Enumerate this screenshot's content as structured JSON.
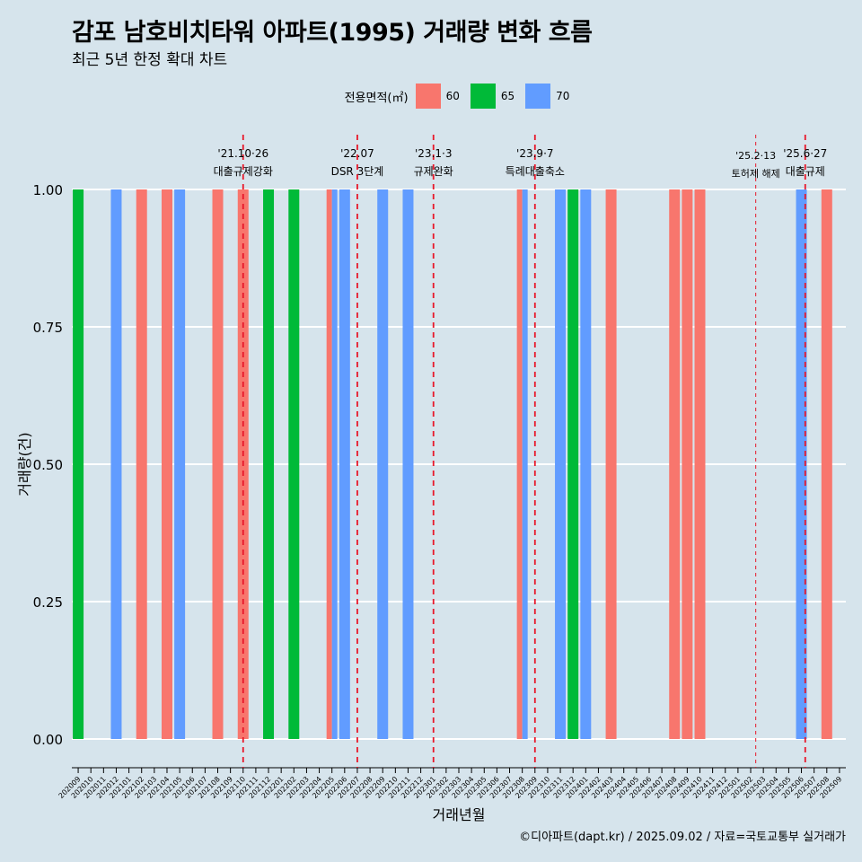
{
  "title": "감포 남호비치타워 아파트(1995) 거래량 변화 흐름",
  "subtitle": "최근 5년 한정 확대 차트",
  "caption": "©디아파트(dapt.kr) / 2025.09.02 / 자료=국토교통부 실거래가",
  "legend": {
    "title": "전용면적(㎡)",
    "items": [
      {
        "label": "60",
        "color": "#F8766D"
      },
      {
        "label": "65",
        "color": "#00BA38"
      },
      {
        "label": "70",
        "color": "#619CFF"
      }
    ]
  },
  "chart_data": {
    "type": "bar",
    "xlabel": "거래년월",
    "ylabel": "거래량(건)",
    "ylim": [
      0,
      1
    ],
    "yticks": [
      "0.00",
      "0.25",
      "0.50",
      "0.75",
      "1.00"
    ],
    "grid": true,
    "legend_position": "top",
    "categories": [
      "202009",
      "202010",
      "202011",
      "202012",
      "202101",
      "202102",
      "202103",
      "202104",
      "202105",
      "202106",
      "202107",
      "202108",
      "202109",
      "202110",
      "202111",
      "202112",
      "202201",
      "202202",
      "202203",
      "202204",
      "202205",
      "202206",
      "202207",
      "202208",
      "202209",
      "202210",
      "202211",
      "202212",
      "202301",
      "202302",
      "202303",
      "202304",
      "202305",
      "202306",
      "202307",
      "202308",
      "202309",
      "202310",
      "202311",
      "202312",
      "202401",
      "202402",
      "202403",
      "202404",
      "202405",
      "202406",
      "202407",
      "202408",
      "202409",
      "202410",
      "202411",
      "202412",
      "202501",
      "202502",
      "202503",
      "202504",
      "202505",
      "202506",
      "202507",
      "202508",
      "202509"
    ],
    "series": [
      {
        "name": "60",
        "color": "#F8766D",
        "values": [
          0,
          0,
          0,
          0,
          0,
          1,
          0,
          1,
          0,
          0,
          0,
          1,
          0,
          1,
          0,
          0,
          0,
          0,
          0,
          0,
          1,
          0,
          0,
          0,
          0,
          0,
          0,
          0,
          0,
          0,
          0,
          0,
          0,
          0,
          0,
          1,
          0,
          0,
          0,
          0,
          0,
          0,
          1,
          0,
          0,
          0,
          0,
          1,
          1,
          1,
          0,
          0,
          0,
          0,
          0,
          0,
          0,
          0,
          0,
          1,
          0
        ]
      },
      {
        "name": "65",
        "color": "#00BA38",
        "values": [
          1,
          0,
          0,
          0,
          0,
          0,
          0,
          0,
          0,
          0,
          0,
          0,
          0,
          0,
          0,
          1,
          0,
          1,
          0,
          0,
          0,
          0,
          0,
          0,
          0,
          0,
          0,
          0,
          0,
          0,
          0,
          0,
          0,
          0,
          0,
          0,
          0,
          0,
          0,
          1,
          0,
          0,
          0,
          0,
          0,
          0,
          0,
          0,
          0,
          0,
          0,
          0,
          0,
          0,
          0,
          0,
          0,
          0,
          0,
          0,
          0
        ]
      },
      {
        "name": "70",
        "color": "#619CFF",
        "values": [
          0,
          0,
          0,
          1,
          0,
          0,
          0,
          0,
          1,
          0,
          0,
          0,
          0,
          0,
          0,
          0,
          0,
          0,
          0,
          0,
          1,
          1,
          0,
          0,
          1,
          0,
          1,
          0,
          0,
          0,
          0,
          0,
          0,
          0,
          0,
          1,
          0,
          0,
          1,
          0,
          1,
          0,
          0,
          0,
          0,
          0,
          0,
          0,
          0,
          0,
          0,
          0,
          0,
          0,
          0,
          0,
          0,
          1,
          0,
          0,
          0
        ]
      }
    ],
    "annotations": [
      {
        "x": 13.0,
        "lines": [
          "'21.10·26",
          "대출규제강화"
        ],
        "style": "dashed-bold"
      },
      {
        "x": 22.0,
        "lines": [
          "'22.07",
          "DSR 3단계"
        ],
        "style": "dashed-bold"
      },
      {
        "x": 28.0,
        "lines": [
          "'23.1·3",
          "규제완화"
        ],
        "style": "dashed-bold"
      },
      {
        "x": 36.0,
        "lines": [
          "'23.9·7",
          "특례대출축소"
        ],
        "style": "dashed-bold"
      },
      {
        "x": 53.4,
        "lines": [
          "'25.2·13",
          "토허제 해제"
        ],
        "style": "dashed-thin"
      },
      {
        "x": 57.3,
        "lines": [
          "'25.6·27",
          "대출규제"
        ],
        "style": "dashed-bold"
      }
    ]
  }
}
